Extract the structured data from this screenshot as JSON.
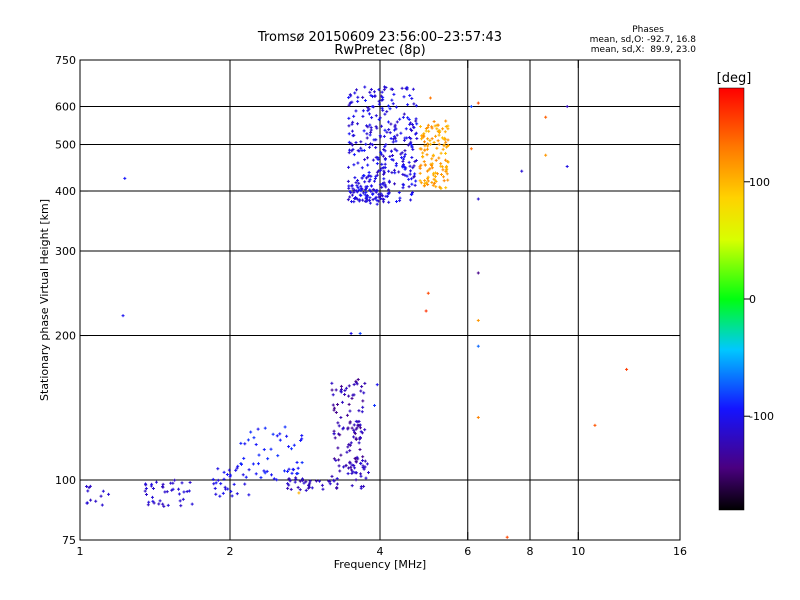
{
  "chart_data": {
    "type": "scatter",
    "title": "Tromsø 20150609 23:56:00–23:57:43",
    "subtitle": "RwPretec (8p)",
    "xlabel": "Frequency [MHz]",
    "ylabel": "Stationary phase Virtual Height [km]",
    "x_scale": "log",
    "y_scale": "log",
    "xlim": [
      1,
      16
    ],
    "ylim": [
      75,
      750
    ],
    "x_ticks": [
      {
        "value": 1,
        "label": "1"
      },
      {
        "value": 2,
        "label": "2"
      },
      {
        "value": 4,
        "label": "4"
      },
      {
        "value": 6,
        "label": "6"
      },
      {
        "value": 8,
        "label": "8"
      },
      {
        "value": 10,
        "label": "10"
      },
      {
        "value": 16,
        "label": "16"
      }
    ],
    "y_ticks": [
      {
        "value": 75,
        "label": "75"
      },
      {
        "value": 100,
        "label": "100"
      },
      {
        "value": 200,
        "label": "200"
      },
      {
        "value": 300,
        "label": "300"
      },
      {
        "value": 400,
        "label": "400"
      },
      {
        "value": 500,
        "label": "500"
      },
      {
        "value": 600,
        "label": "600"
      },
      {
        "value": 750,
        "label": "750"
      }
    ],
    "grid": true,
    "phases_box": {
      "title": "Phases",
      "line1": "mean, sd,O: -92.7, 16.8",
      "line2": "mean, sd,X:  89.9, 23.0"
    },
    "colorbar": {
      "label": "[deg]",
      "range": [
        -180,
        180
      ],
      "ticks": [
        {
          "value": 100,
          "label": "100"
        },
        {
          "value": 0,
          "label": "0"
        },
        {
          "value": -100,
          "label": "-100"
        }
      ]
    },
    "clusters": [
      {
        "x": [
          1.02,
          1.15
        ],
        "y": [
          88,
          98
        ],
        "phase": [
          -118,
          -110
        ],
        "n": 12
      },
      {
        "x": [
          1.35,
          1.7
        ],
        "y": [
          88,
          100
        ],
        "phase": [
          -120,
          -105
        ],
        "n": 40
      },
      {
        "x": [
          1.85,
          2.2
        ],
        "y": [
          92,
          108
        ],
        "phase": [
          -110,
          -95
        ],
        "n": 30
      },
      {
        "x": [
          2.1,
          2.8
        ],
        "y": [
          100,
          130
        ],
        "phase": [
          -100,
          -85
        ],
        "n": 50
      },
      {
        "x": [
          2.6,
          3.3
        ],
        "y": [
          95,
          102
        ],
        "phase": [
          -130,
          -112
        ],
        "n": 40
      },
      {
        "x": [
          3.2,
          3.75
        ],
        "y": [
          104,
          162
        ],
        "phase": [
          -140,
          -112
        ],
        "n": 110
      },
      {
        "x": [
          3.45,
          3.8
        ],
        "y": [
          96,
          110
        ],
        "phase": [
          -128,
          -110
        ],
        "n": 25
      },
      {
        "x": [
          3.45,
          4.75
        ],
        "y": [
          380,
          660
        ],
        "phase": [
          -120,
          -92
        ],
        "n": 320
      },
      {
        "x": [
          3.45,
          4.2
        ],
        "y": [
          375,
          420
        ],
        "phase": [
          -118,
          -100
        ],
        "n": 60
      },
      {
        "x": [
          4.8,
          5.5
        ],
        "y": [
          405,
          560
        ],
        "phase": [
          95,
          125
        ],
        "n": 130
      }
    ],
    "isolated_points": [
      {
        "x": 1.23,
        "y": 425,
        "phase": -95
      },
      {
        "x": 1.22,
        "y": 220,
        "phase": -100
      },
      {
        "x": 3.5,
        "y": 202,
        "phase": -105
      },
      {
        "x": 3.65,
        "y": 202,
        "phase": -80
      },
      {
        "x": 3.9,
        "y": 143,
        "phase": -85
      },
      {
        "x": 3.95,
        "y": 158,
        "phase": -100
      },
      {
        "x": 2.75,
        "y": 94,
        "phase": 100
      },
      {
        "x": 5.05,
        "y": 625,
        "phase": 130
      },
      {
        "x": 5.0,
        "y": 245,
        "phase": 150
      },
      {
        "x": 4.95,
        "y": 225,
        "phase": 160
      },
      {
        "x": 6.1,
        "y": 600,
        "phase": -80
      },
      {
        "x": 6.3,
        "y": 610,
        "phase": 150
      },
      {
        "x": 6.1,
        "y": 490,
        "phase": 135
      },
      {
        "x": 6.3,
        "y": 385,
        "phase": -110
      },
      {
        "x": 6.3,
        "y": 270,
        "phase": -140
      },
      {
        "x": 6.3,
        "y": 215,
        "phase": 115
      },
      {
        "x": 6.3,
        "y": 190,
        "phase": -70
      },
      {
        "x": 6.3,
        "y": 135,
        "phase": 125
      },
      {
        "x": 7.7,
        "y": 440,
        "phase": -110
      },
      {
        "x": 8.6,
        "y": 570,
        "phase": 140
      },
      {
        "x": 8.6,
        "y": 475,
        "phase": 115
      },
      {
        "x": 9.5,
        "y": 600,
        "phase": -120
      },
      {
        "x": 9.5,
        "y": 450,
        "phase": -105
      },
      {
        "x": 10.8,
        "y": 130,
        "phase": 145
      },
      {
        "x": 12.5,
        "y": 170,
        "phase": 155
      },
      {
        "x": 7.2,
        "y": 76,
        "phase": 150
      }
    ]
  }
}
